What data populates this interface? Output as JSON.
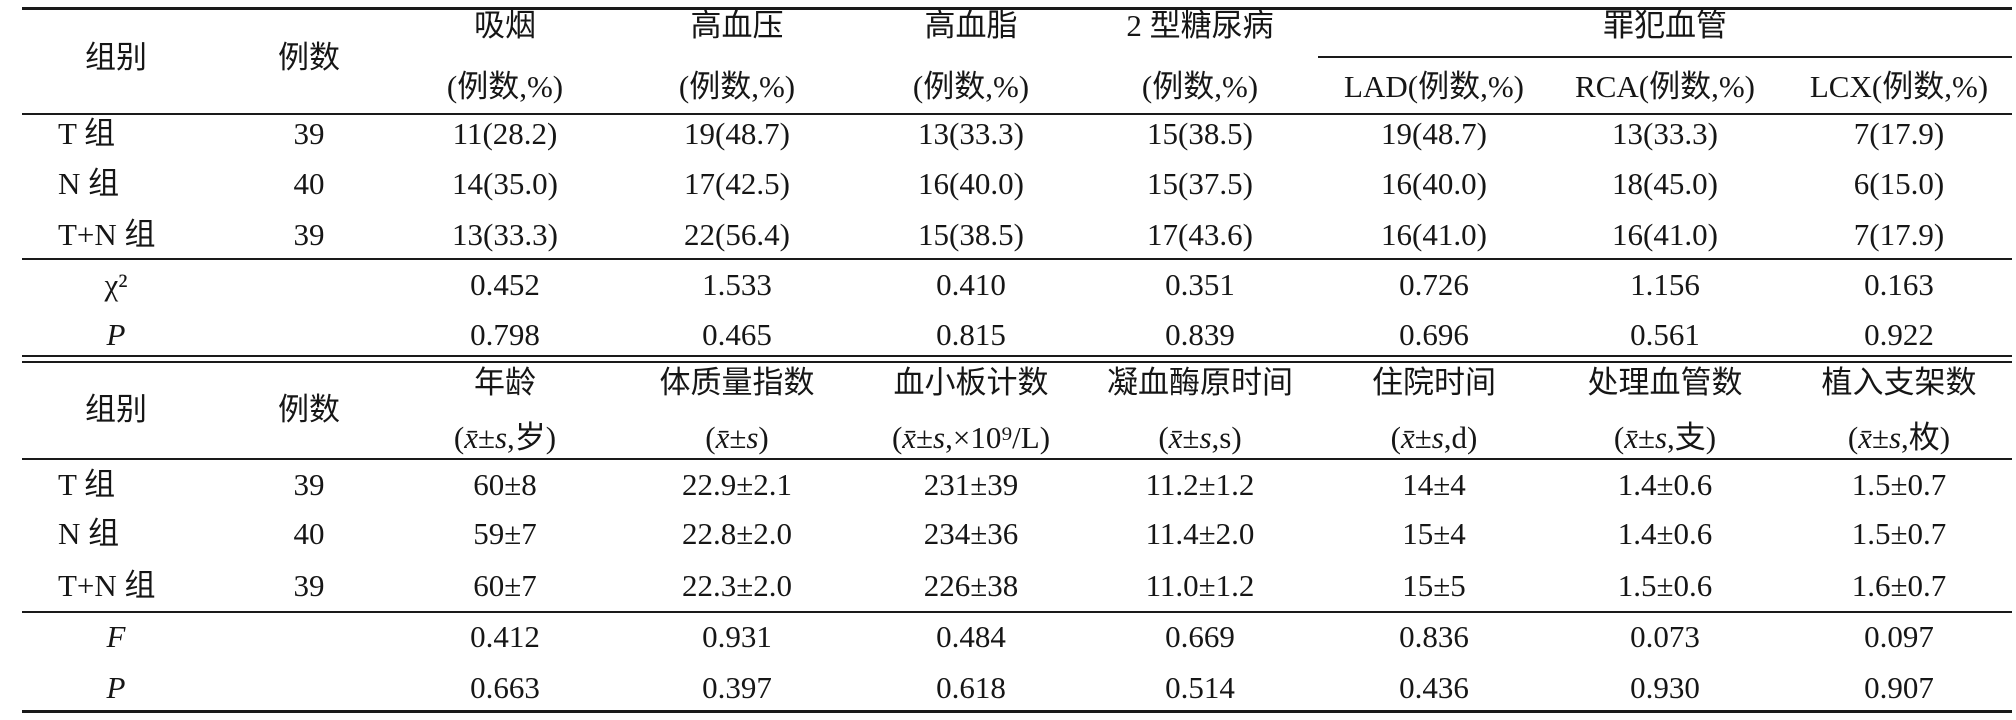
{
  "chart_data": [
    {
      "type": "table",
      "header": {
        "group_label": "组别",
        "n_label": "例数",
        "columns": [
          {
            "title": "吸烟",
            "sub": "(例数,%)"
          },
          {
            "title": "高血压",
            "sub": "(例数,%)"
          },
          {
            "title": "高血脂",
            "sub": "(例数,%)"
          },
          {
            "title": "2 型糖尿病",
            "sub": "(例数,%)"
          }
        ],
        "spanner": {
          "title": "罪犯血管",
          "columns": [
            {
              "sub": "LAD(例数,%)"
            },
            {
              "sub": "RCA(例数,%)"
            },
            {
              "sub": "LCX(例数,%)"
            }
          ]
        }
      },
      "rows": [
        {
          "group": "T 组",
          "n": "39",
          "values": [
            "11(28.2)",
            "19(48.7)",
            "13(33.3)",
            "15(38.5)",
            "19(48.7)",
            "13(33.3)",
            "7(17.9)"
          ]
        },
        {
          "group": "N 组",
          "n": "40",
          "values": [
            "14(35.0)",
            "17(42.5)",
            "16(40.0)",
            "15(37.5)",
            "16(40.0)",
            "18(45.0)",
            "6(15.0)"
          ]
        },
        {
          "group": "T+N 组",
          "n": "39",
          "values": [
            "13(33.3)",
            "22(56.4)",
            "15(38.5)",
            "17(43.6)",
            "16(41.0)",
            "16(41.0)",
            "7(17.9)"
          ]
        }
      ],
      "stats": [
        {
          "label": "χ²",
          "values": [
            "0.452",
            "1.533",
            "0.410",
            "0.351",
            "0.726",
            "1.156",
            "0.163"
          ]
        },
        {
          "label": "P",
          "values": [
            "0.798",
            "0.465",
            "0.815",
            "0.839",
            "0.696",
            "0.561",
            "0.922"
          ]
        }
      ]
    },
    {
      "type": "table",
      "header": {
        "group_label": "组别",
        "n_label": "例数",
        "columns": [
          {
            "title": "年龄",
            "sub": {
              "pre": "(",
              "mean": "x̄",
              "pm": "±",
              "sd": "s",
              "post": ",岁)"
            }
          },
          {
            "title": "体质量指数",
            "sub": {
              "pre": "(",
              "mean": "x̄",
              "pm": "±",
              "sd": "s",
              "post": ")"
            }
          },
          {
            "title": "血小板计数",
            "sub": {
              "pre": "(",
              "mean": "x̄",
              "pm": "±",
              "sd": "s",
              "post": ",×10⁹/L)"
            }
          },
          {
            "title": "凝血酶原时间",
            "sub": {
              "pre": "(",
              "mean": "x̄",
              "pm": "±",
              "sd": "s",
              "post": ",s)"
            }
          },
          {
            "title": "住院时间",
            "sub": {
              "pre": "(",
              "mean": "x̄",
              "pm": "±",
              "sd": "s",
              "post": ",d)"
            }
          },
          {
            "title": "处理血管数",
            "sub": {
              "pre": "(",
              "mean": "x̄",
              "pm": "±",
              "sd": "s",
              "post": ",支)"
            }
          },
          {
            "title": "植入支架数",
            "sub": {
              "pre": "(",
              "mean": "x̄",
              "pm": "±",
              "sd": "s",
              "post": ",枚)"
            }
          }
        ]
      },
      "rows": [
        {
          "group": "T 组",
          "n": "39",
          "values": [
            "60±8",
            "22.9±2.1",
            "231±39",
            "11.2±1.2",
            "14±4",
            "1.4±0.6",
            "1.5±0.7"
          ]
        },
        {
          "group": "N 组",
          "n": "40",
          "values": [
            "59±7",
            "22.8±2.0",
            "234±36",
            "11.4±2.0",
            "15±4",
            "1.4±0.6",
            "1.5±0.7"
          ]
        },
        {
          "group": "T+N 组",
          "n": "39",
          "values": [
            "60±7",
            "22.3±2.0",
            "226±38",
            "11.0±1.2",
            "15±5",
            "1.5±0.6",
            "1.6±0.7"
          ]
        }
      ],
      "stats": [
        {
          "label": "F",
          "values": [
            "0.412",
            "0.931",
            "0.484",
            "0.669",
            "0.836",
            "0.073",
            "0.097"
          ]
        },
        {
          "label": "P",
          "values": [
            "0.663",
            "0.397",
            "0.618",
            "0.514",
            "0.436",
            "0.930",
            "0.907"
          ]
        }
      ]
    }
  ]
}
